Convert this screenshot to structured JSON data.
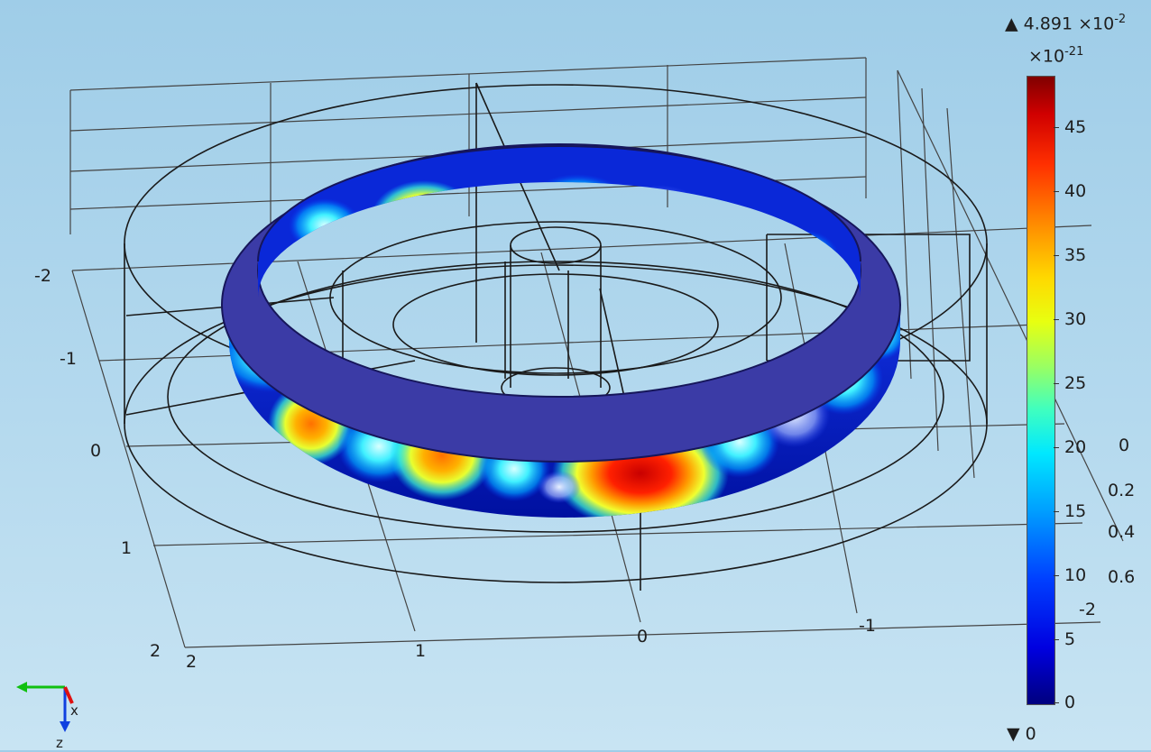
{
  "colorbar": {
    "max_label": "4.891 ×10",
    "max_exp": "-2",
    "multiplier": "×10",
    "multiplier_exp": "-21",
    "min_label": "0",
    "ticks": [
      "45",
      "40",
      "35",
      "30",
      "25",
      "20",
      "15",
      "10",
      "5",
      "0"
    ],
    "max_marker": "▲",
    "min_marker": "▼"
  },
  "axes": {
    "left_ticks": [
      "-2",
      "-1",
      "0",
      "1",
      "2"
    ],
    "bottom_ticks": [
      "2",
      "1",
      "0",
      "-1"
    ],
    "right_ticks": [
      "0",
      "0.2",
      "0.4",
      "0.6",
      "-2"
    ]
  },
  "triad": {
    "x": "x",
    "z": "z"
  },
  "colors": {
    "ring_top": "#3a3aa0",
    "ring_top_edge": "#20206a",
    "ring_side_base": "#0a1cc8",
    "hotspot": "#e00000"
  }
}
